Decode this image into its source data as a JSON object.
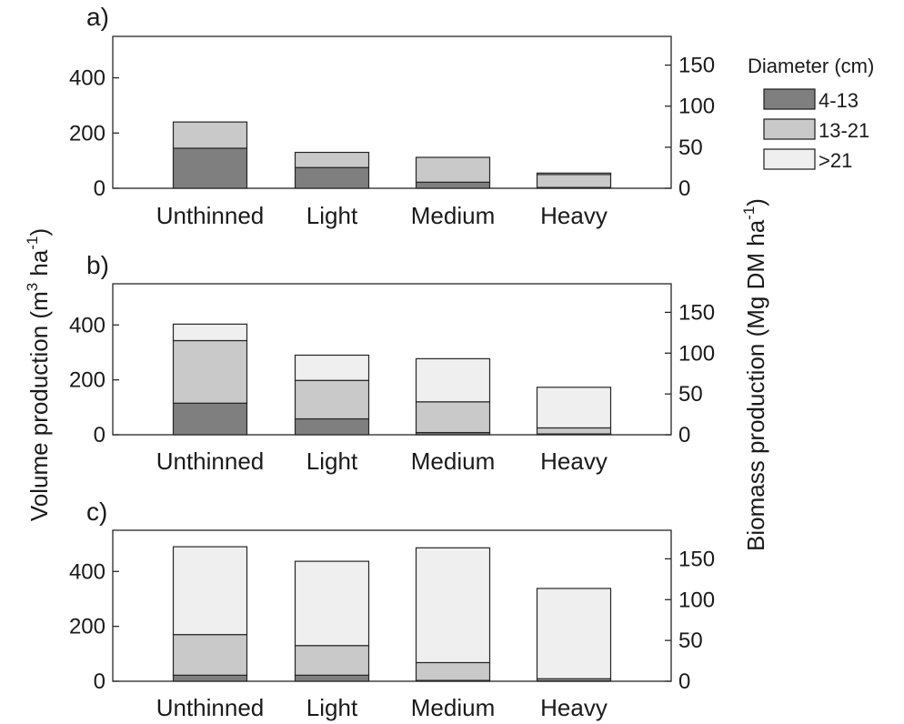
{
  "figure": {
    "ylabel_left": {
      "main": "Volume production (m",
      "sup1": "3",
      "mid": " ha",
      "sup2": "-1",
      "end": ")"
    },
    "ylabel_right": {
      "main": "Biomass production (Mg DM ha",
      "sup": "-1",
      "end": ")"
    }
  },
  "legend": {
    "title": "Diameter (cm)",
    "items": [
      {
        "label": "4-13",
        "color": "#7f7f7f"
      },
      {
        "label": "13-21",
        "color": "#c9c9c9"
      },
      {
        "label": ">21",
        "color": "#efefef"
      }
    ]
  },
  "chart_data": [
    {
      "panel_label": "a)",
      "type": "bar",
      "stacked": true,
      "categories": [
        "Unthinned",
        "Light",
        "Medium",
        "Heavy"
      ],
      "series": [
        {
          "name": "4-13",
          "values": [
            145,
            75,
            22,
            3
          ]
        },
        {
          "name": "13-21",
          "values": [
            95,
            55,
            90,
            47
          ]
        },
        {
          "name": ">21",
          "values": [
            0,
            0,
            0,
            5
          ]
        }
      ],
      "ylim_left": [
        0,
        550
      ],
      "yticks_left": [
        0,
        200,
        400
      ],
      "ylim_right": [
        0,
        185
      ],
      "yticks_right": [
        0,
        50,
        100,
        150
      ]
    },
    {
      "panel_label": "b)",
      "type": "bar",
      "stacked": true,
      "categories": [
        "Unthinned",
        "Light",
        "Medium",
        "Heavy"
      ],
      "series": [
        {
          "name": "4-13",
          "values": [
            115,
            58,
            8,
            3
          ]
        },
        {
          "name": "13-21",
          "values": [
            228,
            140,
            112,
            22
          ]
        },
        {
          "name": ">21",
          "values": [
            60,
            92,
            157,
            148
          ]
        }
      ],
      "ylim_left": [
        0,
        550
      ],
      "yticks_left": [
        0,
        200,
        400
      ],
      "ylim_right": [
        0,
        185
      ],
      "yticks_right": [
        0,
        50,
        100,
        150
      ]
    },
    {
      "panel_label": "c)",
      "type": "bar",
      "stacked": true,
      "categories": [
        "Unthinned",
        "Light",
        "Medium",
        "Heavy"
      ],
      "series": [
        {
          "name": "4-13",
          "values": [
            22,
            22,
            3,
            2
          ]
        },
        {
          "name": "13-21",
          "values": [
            148,
            108,
            65,
            7
          ]
        },
        {
          "name": ">21",
          "values": [
            320,
            307,
            418,
            329
          ]
        }
      ],
      "ylim_left": [
        0,
        550
      ],
      "yticks_left": [
        0,
        200,
        400
      ],
      "ylim_right": [
        0,
        185
      ],
      "yticks_right": [
        0,
        50,
        100,
        150
      ]
    }
  ]
}
